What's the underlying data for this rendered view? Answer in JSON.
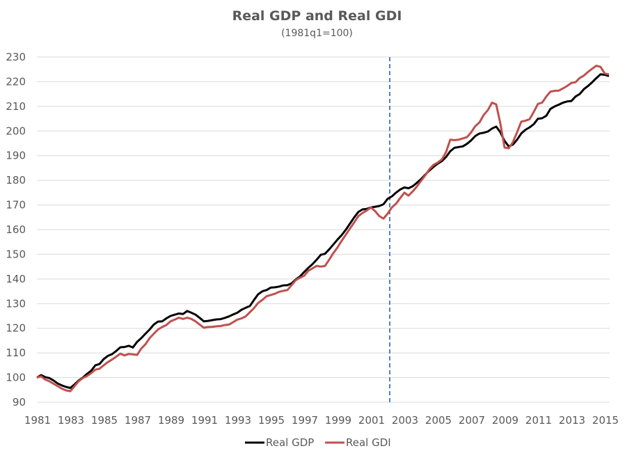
{
  "chart_data": {
    "type": "line",
    "title": "Real GDP and Real GDI",
    "subtitle": "(1981q1=100)",
    "xlabel": "",
    "ylabel": "",
    "x_start": "1981q1",
    "x_frequency": "quarterly",
    "xlim": [
      1981.0,
      2015.25
    ],
    "ylim": [
      90,
      230
    ],
    "y_ticks": [
      90,
      100,
      110,
      120,
      130,
      140,
      150,
      160,
      170,
      180,
      190,
      200,
      210,
      220,
      230
    ],
    "x_ticks": [
      "1981",
      "1983",
      "1985",
      "1987",
      "1989",
      "1991",
      "1993",
      "1995",
      "1997",
      "1999",
      "2001",
      "2003",
      "2005",
      "2007",
      "2009",
      "2011",
      "2013",
      "2015"
    ],
    "grid": "horizontal",
    "legend_position": "bottom",
    "reference_line": {
      "type": "vertical-dashed",
      "x": "2002q1",
      "color": "#4F81BD"
    },
    "series": [
      {
        "name": "Real GDP",
        "color": "#000000",
        "anchors": [
          [
            0,
            100
          ],
          [
            1,
            101
          ],
          [
            2,
            100.2
          ],
          [
            3,
            99.8
          ],
          [
            4,
            98.8
          ],
          [
            5,
            97.6
          ],
          [
            6,
            96.8
          ],
          [
            7,
            96.2
          ],
          [
            8,
            95.8
          ],
          [
            9,
            97.2
          ],
          [
            10,
            98.8
          ],
          [
            11,
            100
          ],
          [
            12,
            101.5
          ],
          [
            13,
            102.8
          ],
          [
            14,
            105
          ],
          [
            15,
            105.5
          ],
          [
            16,
            107.5
          ],
          [
            17,
            108.8
          ],
          [
            18,
            109.5
          ],
          [
            19,
            110.8
          ],
          [
            20,
            112.3
          ],
          [
            21,
            112.4
          ],
          [
            22,
            112.9
          ],
          [
            23,
            112.2
          ],
          [
            24,
            114.5
          ],
          [
            25,
            116
          ],
          [
            26,
            117.8
          ],
          [
            27,
            119.5
          ],
          [
            28,
            121.5
          ],
          [
            29,
            122.7
          ],
          [
            30,
            122.8
          ],
          [
            31,
            124
          ],
          [
            32,
            125
          ],
          [
            33,
            125.5
          ],
          [
            34,
            126
          ],
          [
            35,
            125.8
          ],
          [
            36,
            127
          ],
          [
            37,
            126.3
          ],
          [
            38,
            125.5
          ],
          [
            39,
            124.2
          ],
          [
            40,
            122.8
          ],
          [
            41,
            123
          ],
          [
            42,
            123.3
          ],
          [
            43,
            123.6
          ],
          [
            44,
            123.7
          ],
          [
            45,
            124.2
          ],
          [
            46,
            124.8
          ],
          [
            47,
            125.6
          ],
          [
            48,
            126.3
          ],
          [
            49,
            127.5
          ],
          [
            50,
            128.3
          ],
          [
            51,
            129
          ],
          [
            52,
            131.5
          ],
          [
            53,
            133.8
          ],
          [
            54,
            135
          ],
          [
            55,
            135.5
          ],
          [
            56,
            136.5
          ],
          [
            57,
            136.6
          ],
          [
            58,
            136.9
          ],
          [
            59,
            137.4
          ],
          [
            60,
            137.5
          ],
          [
            61,
            138.2
          ],
          [
            62,
            139.8
          ],
          [
            63,
            141
          ],
          [
            64,
            142.8
          ],
          [
            65,
            144.5
          ],
          [
            66,
            146
          ],
          [
            67,
            147.8
          ],
          [
            68,
            149.8
          ],
          [
            69,
            150.2
          ],
          [
            70,
            152
          ],
          [
            71,
            154
          ],
          [
            72,
            156
          ],
          [
            73,
            157.8
          ],
          [
            74,
            160
          ],
          [
            75,
            162.5
          ],
          [
            76,
            165
          ],
          [
            77,
            167.2
          ],
          [
            78,
            168.2
          ],
          [
            79,
            168.4
          ],
          [
            80,
            169
          ],
          [
            81,
            169.3
          ],
          [
            82,
            169.6
          ],
          [
            83,
            170.3
          ],
          [
            84,
            172.5
          ],
          [
            85,
            173.5
          ],
          [
            86,
            175
          ],
          [
            87,
            176.3
          ],
          [
            88,
            177.1
          ],
          [
            89,
            176.8
          ],
          [
            90,
            177.6
          ],
          [
            91,
            179
          ],
          [
            92,
            180.5
          ],
          [
            93,
            182.3
          ],
          [
            94,
            184
          ],
          [
            95,
            185.5
          ],
          [
            96,
            186.8
          ],
          [
            97,
            187.8
          ],
          [
            98,
            189.5
          ],
          [
            99,
            191.8
          ],
          [
            100,
            193.2
          ],
          [
            101,
            193.5
          ],
          [
            102,
            193.8
          ],
          [
            103,
            194.8
          ],
          [
            104,
            196.2
          ],
          [
            105,
            198
          ],
          [
            106,
            199
          ],
          [
            107,
            199.3
          ],
          [
            108,
            199.8
          ],
          [
            109,
            201
          ],
          [
            110,
            201.8
          ],
          [
            111,
            199.5
          ],
          [
            112,
            196
          ],
          [
            113,
            193.8
          ],
          [
            114,
            194.5
          ],
          [
            115,
            196.5
          ],
          [
            116,
            199
          ],
          [
            117,
            200.5
          ],
          [
            118,
            201.5
          ],
          [
            119,
            202.8
          ],
          [
            120,
            205
          ],
          [
            121,
            205.2
          ],
          [
            122,
            206.2
          ],
          [
            123,
            209
          ],
          [
            124,
            210
          ],
          [
            125,
            210.7
          ],
          [
            126,
            211.5
          ],
          [
            127,
            212
          ],
          [
            128,
            212.2
          ],
          [
            129,
            214
          ],
          [
            130,
            215
          ],
          [
            131,
            217
          ],
          [
            132,
            218.3
          ],
          [
            133,
            219.8
          ],
          [
            134,
            221.5
          ],
          [
            135,
            223
          ],
          [
            136,
            222.8
          ],
          [
            137,
            222.3
          ]
        ]
      },
      {
        "name": "Real GDI",
        "color": "#C0504D",
        "anchors": [
          [
            0,
            100
          ],
          [
            1,
            100.5
          ],
          [
            2,
            99.2
          ],
          [
            3,
            98.5
          ],
          [
            4,
            97.5
          ],
          [
            5,
            96.5
          ],
          [
            6,
            95.5
          ],
          [
            7,
            94.8
          ],
          [
            8,
            94.5
          ],
          [
            9,
            96.5
          ],
          [
            10,
            98.5
          ],
          [
            11,
            99.8
          ],
          [
            12,
            100.6
          ],
          [
            13,
            101.8
          ],
          [
            14,
            103.2
          ],
          [
            15,
            103.6
          ],
          [
            16,
            105
          ],
          [
            17,
            106.3
          ],
          [
            18,
            107.3
          ],
          [
            19,
            108.5
          ],
          [
            20,
            109.7
          ],
          [
            21,
            109
          ],
          [
            22,
            109.6
          ],
          [
            23,
            109.4
          ],
          [
            24,
            109.2
          ],
          [
            25,
            111.8
          ],
          [
            26,
            113.5
          ],
          [
            27,
            116
          ],
          [
            28,
            117.8
          ],
          [
            29,
            119.5
          ],
          [
            30,
            120.5
          ],
          [
            31,
            121.3
          ],
          [
            32,
            122.8
          ],
          [
            33,
            123.5
          ],
          [
            34,
            124.3
          ],
          [
            35,
            123.8
          ],
          [
            36,
            124.3
          ],
          [
            37,
            123.8
          ],
          [
            38,
            122.8
          ],
          [
            39,
            121.5
          ],
          [
            40,
            120.2
          ],
          [
            41,
            120.5
          ],
          [
            42,
            120.6
          ],
          [
            43,
            120.8
          ],
          [
            44,
            120.9
          ],
          [
            45,
            121.3
          ],
          [
            46,
            121.5
          ],
          [
            47,
            122.5
          ],
          [
            48,
            123.5
          ],
          [
            49,
            124
          ],
          [
            50,
            124.8
          ],
          [
            51,
            126.5
          ],
          [
            52,
            128.2
          ],
          [
            53,
            130.3
          ],
          [
            54,
            131.5
          ],
          [
            55,
            133
          ],
          [
            56,
            133.5
          ],
          [
            57,
            134
          ],
          [
            58,
            134.8
          ],
          [
            59,
            135.2
          ],
          [
            60,
            135.5
          ],
          [
            61,
            137.5
          ],
          [
            62,
            139.5
          ],
          [
            63,
            140.5
          ],
          [
            64,
            141.3
          ],
          [
            65,
            143.3
          ],
          [
            66,
            144.3
          ],
          [
            67,
            145.3
          ],
          [
            68,
            145
          ],
          [
            69,
            145.3
          ],
          [
            70,
            147.8
          ],
          [
            71,
            150.5
          ],
          [
            72,
            152.8
          ],
          [
            73,
            155.5
          ],
          [
            74,
            158
          ],
          [
            75,
            160.5
          ],
          [
            76,
            163
          ],
          [
            77,
            165.5
          ],
          [
            78,
            166.8
          ],
          [
            79,
            167.8
          ],
          [
            80,
            169
          ],
          [
            81,
            167.5
          ],
          [
            82,
            165.5
          ],
          [
            83,
            164.5
          ],
          [
            84,
            166.5
          ],
          [
            85,
            169
          ],
          [
            86,
            170.5
          ],
          [
            87,
            172.8
          ],
          [
            88,
            175
          ],
          [
            89,
            173.8
          ],
          [
            90,
            175.5
          ],
          [
            91,
            177.5
          ],
          [
            92,
            179.8
          ],
          [
            93,
            182
          ],
          [
            94,
            184.5
          ],
          [
            95,
            186.3
          ],
          [
            96,
            187.2
          ],
          [
            97,
            188.5
          ],
          [
            98,
            191.5
          ],
          [
            99,
            196.5
          ],
          [
            100,
            196.3
          ],
          [
            101,
            196.5
          ],
          [
            102,
            197
          ],
          [
            103,
            197.5
          ],
          [
            104,
            199.5
          ],
          [
            105,
            202
          ],
          [
            106,
            203.5
          ],
          [
            107,
            206.5
          ],
          [
            108,
            208.5
          ],
          [
            109,
            211.5
          ],
          [
            110,
            210.8
          ],
          [
            111,
            203
          ],
          [
            112,
            193.3
          ],
          [
            113,
            193
          ],
          [
            114,
            195.5
          ],
          [
            115,
            199.5
          ],
          [
            116,
            203.8
          ],
          [
            117,
            204.2
          ],
          [
            118,
            204.8
          ],
          [
            119,
            207.8
          ],
          [
            120,
            211
          ],
          [
            121,
            211.5
          ],
          [
            122,
            214
          ],
          [
            123,
            216
          ],
          [
            124,
            216.3
          ],
          [
            125,
            216.4
          ],
          [
            126,
            217.3
          ],
          [
            127,
            218.3
          ],
          [
            128,
            219.5
          ],
          [
            129,
            219.8
          ],
          [
            130,
            221.5
          ],
          [
            131,
            222.5
          ],
          [
            132,
            224
          ],
          [
            133,
            225.3
          ],
          [
            134,
            226.5
          ],
          [
            135,
            226
          ],
          [
            136,
            223.3
          ],
          [
            137,
            223
          ]
        ]
      }
    ]
  },
  "legend": {
    "items": [
      {
        "label": "Real GDP",
        "color": "#000000"
      },
      {
        "label": "Real GDI",
        "color": "#C0504D"
      }
    ]
  }
}
